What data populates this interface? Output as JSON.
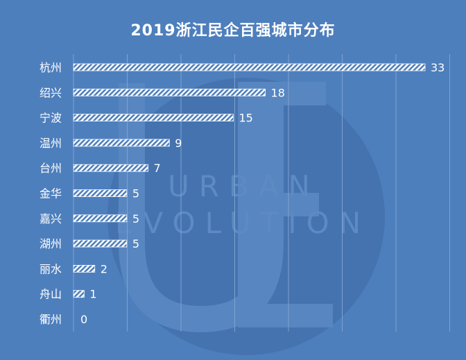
{
  "chart_data": {
    "type": "bar",
    "orientation": "horizontal",
    "title": "2019浙江民企百强城市分布",
    "categories": [
      "杭州",
      "绍兴",
      "宁波",
      "温州",
      "台州",
      "金华",
      "嘉兴",
      "湖州",
      "丽水",
      "舟山",
      "衢州"
    ],
    "values": [
      33,
      18,
      15,
      9,
      7,
      5,
      5,
      5,
      2,
      1,
      0
    ],
    "xlim": [
      0,
      33
    ],
    "grid": true,
    "bar_fill": "diagonal-hatch",
    "colors": {
      "background": "#4e7fbd",
      "bar": "#ffffff",
      "text": "#ffffff",
      "grid": "#7ea2d0"
    }
  },
  "watermark": {
    "line1": "URBAN",
    "line2": "EVOLUTION"
  }
}
